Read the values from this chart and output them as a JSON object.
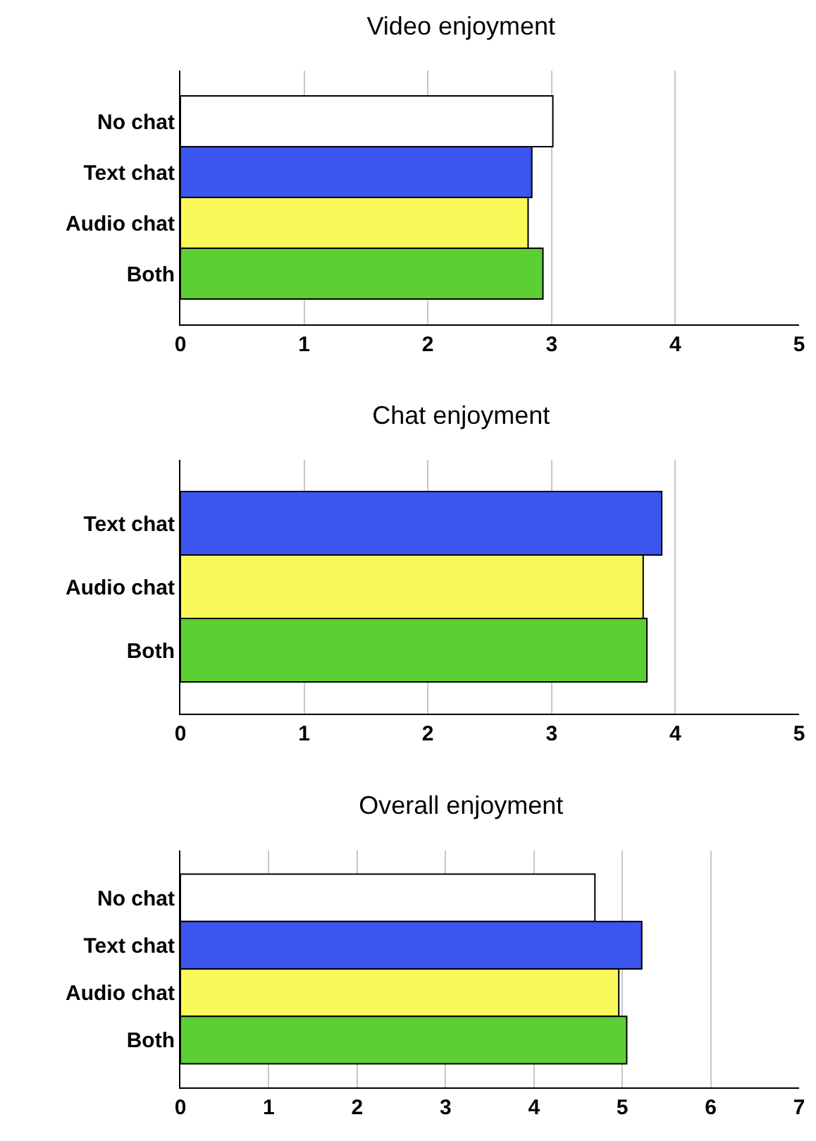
{
  "chart_data": [
    {
      "type": "bar",
      "orientation": "horizontal",
      "title": "Video enjoyment",
      "categories": [
        "No chat",
        "Text chat",
        "Audio chat",
        "Both"
      ],
      "values": [
        3.01,
        2.84,
        2.81,
        2.93
      ],
      "colors": [
        "#ffffff",
        "#3a55f0",
        "#fbf85a",
        "#5bcf34"
      ],
      "xlim": [
        0,
        5
      ],
      "xticks": [
        0,
        1,
        2,
        3,
        4,
        5
      ],
      "grid": "x"
    },
    {
      "type": "bar",
      "orientation": "horizontal",
      "title": "Chat enjoyment",
      "categories": [
        "Text chat",
        "Audio chat",
        "Both"
      ],
      "values": [
        3.89,
        3.74,
        3.77
      ],
      "colors": [
        "#3a55f0",
        "#fbf85a",
        "#5bcf34"
      ],
      "xlim": [
        0,
        5
      ],
      "xticks": [
        0,
        1,
        2,
        3,
        4,
        5
      ],
      "grid": "x"
    },
    {
      "type": "bar",
      "orientation": "horizontal",
      "title": "Overall enjoyment",
      "categories": [
        "No chat",
        "Text chat",
        "Audio chat",
        "Both"
      ],
      "values": [
        4.69,
        5.22,
        4.96,
        5.05
      ],
      "colors": [
        "#ffffff",
        "#3a55f0",
        "#fbf85a",
        "#5bcf34"
      ],
      "xlim": [
        0,
        7
      ],
      "xticks": [
        0,
        1,
        2,
        3,
        4,
        5,
        6,
        7
      ],
      "grid": "x"
    }
  ]
}
